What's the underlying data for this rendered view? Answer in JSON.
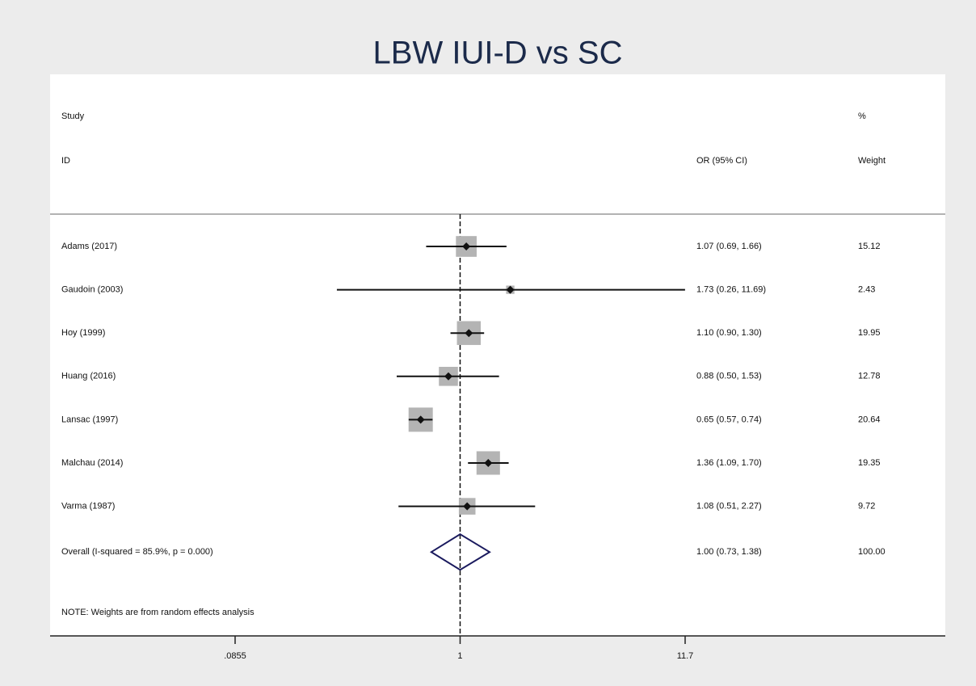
{
  "chart_data": {
    "type": "forest",
    "title": "LBW IUI-D vs SC",
    "headers": {
      "study": "Study",
      "id": "ID",
      "estimate": "OR (95% CI)",
      "pct": "%",
      "weight": "Weight"
    },
    "studies": [
      "Adams (2017)",
      "Gaudoin (2003)",
      "Hoy (1999)",
      "Huang (2016)",
      "Lansac (1997)",
      "Malchau (2014)",
      "Varma (1987)"
    ],
    "or": [
      1.07,
      1.73,
      1.1,
      0.88,
      0.65,
      1.36,
      1.08
    ],
    "ci_low": [
      0.69,
      0.26,
      0.9,
      0.5,
      0.57,
      1.09,
      0.51
    ],
    "ci_high": [
      1.66,
      11.69,
      1.3,
      1.53,
      0.74,
      1.7,
      2.27
    ],
    "value_labels": [
      "1.07 (0.69, 1.66)",
      "1.73 (0.26, 11.69)",
      "1.10 (0.90, 1.30)",
      "0.88 (0.50, 1.53)",
      "0.65 (0.57, 0.74)",
      "1.36 (1.09, 1.70)",
      "1.08 (0.51, 2.27)"
    ],
    "weights": [
      15.12,
      2.43,
      19.95,
      12.78,
      20.64,
      19.35,
      9.72
    ],
    "overall": {
      "name": "Overall  (I-squared = 85.9%, p = 0.000)",
      "or": 1.0,
      "ci_low": 0.73,
      "ci_high": 1.38,
      "value_label": "1.00 (0.73, 1.38)",
      "weight": 100,
      "weight_label": "100.00"
    },
    "note": "NOTE: Weights are from random effects analysis",
    "xlim": [
      0.0855,
      11.7
    ],
    "xticks": [
      {
        "value": 0.0855,
        "label": ".0855"
      },
      1,
      11.7
    ],
    "log_x": true,
    "box_color": "#b4b4b4",
    "diamond_color": "#1a1a5e"
  }
}
